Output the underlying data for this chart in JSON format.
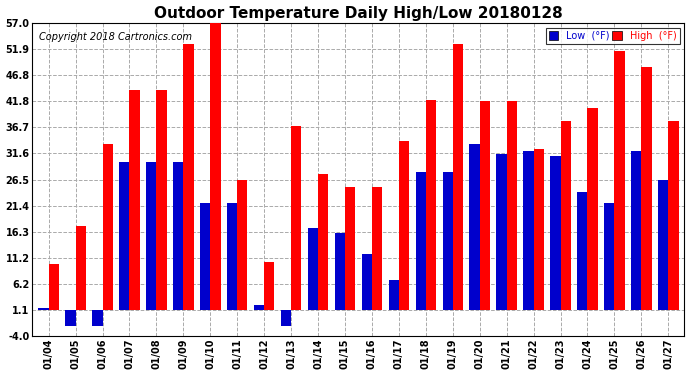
{
  "title": "Outdoor Temperature Daily High/Low 20180128",
  "copyright": "Copyright 2018 Cartronics.com",
  "dates": [
    "01/04",
    "01/05",
    "01/06",
    "01/07",
    "01/08",
    "01/09",
    "01/10",
    "01/11",
    "01/12",
    "01/13",
    "01/14",
    "01/15",
    "01/16",
    "01/17",
    "01/18",
    "01/19",
    "01/20",
    "01/21",
    "01/22",
    "01/23",
    "01/24",
    "01/25",
    "01/26",
    "01/27"
  ],
  "high": [
    10.0,
    17.5,
    33.5,
    44.0,
    44.0,
    53.0,
    57.0,
    26.5,
    10.5,
    37.0,
    27.5,
    25.0,
    25.0,
    34.0,
    42.0,
    53.0,
    41.8,
    41.8,
    32.5,
    38.0,
    40.5,
    51.5,
    48.5,
    38.0
  ],
  "low": [
    1.5,
    -2.0,
    -2.0,
    30.0,
    30.0,
    30.0,
    22.0,
    22.0,
    2.0,
    -2.0,
    17.0,
    16.0,
    12.0,
    7.0,
    28.0,
    28.0,
    33.5,
    31.5,
    32.0,
    31.0,
    24.0,
    22.0,
    32.0,
    26.5
  ],
  "ylim_min": -4.0,
  "ylim_max": 57.0,
  "yticks": [
    -4.0,
    1.1,
    6.2,
    11.2,
    16.3,
    21.4,
    26.5,
    31.6,
    36.7,
    41.8,
    46.8,
    51.9,
    57.0
  ],
  "high_color": "#ff0000",
  "low_color": "#0000cc",
  "bg_color": "#ffffff",
  "grid_color": "#aaaaaa",
  "bar_width": 0.38,
  "title_fontsize": 11,
  "copyright_fontsize": 7,
  "legend_low_label": "Low  (°F)",
  "legend_high_label": "High  (°F)"
}
